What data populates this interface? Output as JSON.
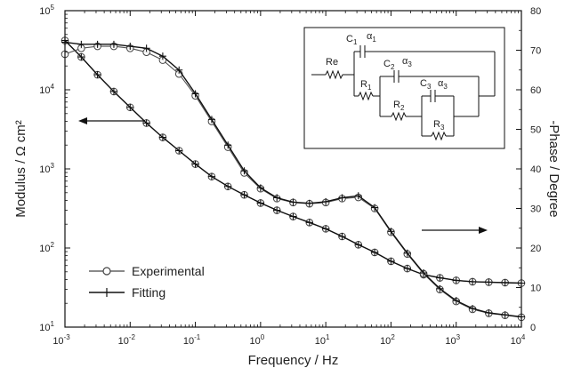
{
  "chart_data": {
    "type": "line",
    "title": "",
    "xlabel": "Frequency / Hz",
    "ylabel": "Modulus / Ω cm²",
    "ylabel_right": "-Phase / Degree",
    "xscale": "log",
    "yscale": "log",
    "xlim": [
      0.001,
      10000
    ],
    "ylim": [
      10,
      100000
    ],
    "ylim_right": [
      0,
      80
    ],
    "x_ticks": [
      {
        "base": "10",
        "exp": "-3"
      },
      {
        "base": "10",
        "exp": "-2"
      },
      {
        "base": "10",
        "exp": "-1"
      },
      {
        "base": "10",
        "exp": "0"
      },
      {
        "base": "10",
        "exp": "1"
      },
      {
        "base": "10",
        "exp": "2"
      },
      {
        "base": "10",
        "exp": "3"
      },
      {
        "base": "10",
        "exp": "4"
      }
    ],
    "y_ticks": [
      {
        "base": "10",
        "exp": "1"
      },
      {
        "base": "10",
        "exp": "2"
      },
      {
        "base": "10",
        "exp": "3"
      },
      {
        "base": "10",
        "exp": "4"
      },
      {
        "base": "10",
        "exp": "5"
      }
    ],
    "y2_ticks": [
      "0",
      "10",
      "20",
      "30",
      "40",
      "50",
      "60",
      "70",
      "80"
    ],
    "legend": {
      "placement": "bottom-left",
      "entries": [
        "Experimental",
        "Fitting"
      ]
    },
    "series": [
      {
        "name": "Experimental",
        "axis": "left",
        "marker": "circle",
        "x": [
          0.001,
          0.00178,
          0.00316,
          0.00562,
          0.01,
          0.0178,
          0.0316,
          0.0562,
          0.1,
          0.178,
          0.316,
          0.562,
          1,
          1.78,
          3.16,
          5.62,
          10,
          17.8,
          31.6,
          56.2,
          100,
          178,
          316,
          562,
          1000,
          1780,
          3160,
          5620,
          10000
        ],
        "y": [
          42000,
          26000,
          15500,
          9500,
          6000,
          3800,
          2500,
          1700,
          1150,
          800,
          600,
          470,
          370,
          300,
          250,
          210,
          175,
          140,
          110,
          88,
          68,
          55,
          46,
          42,
          39,
          37.5,
          37,
          36.5,
          36
        ]
      },
      {
        "name": "Fitting",
        "axis": "left",
        "marker": "plus",
        "x": [
          0.001,
          0.00178,
          0.00316,
          0.00562,
          0.01,
          0.0178,
          0.0316,
          0.0562,
          0.1,
          0.178,
          0.316,
          0.562,
          1,
          1.78,
          3.16,
          5.62,
          10,
          17.8,
          31.6,
          56.2,
          100,
          178,
          316,
          562,
          1000,
          1780,
          3160,
          5620,
          10000
        ],
        "y": [
          42000,
          26000,
          15500,
          9500,
          6000,
          3800,
          2500,
          1700,
          1150,
          800,
          600,
          470,
          370,
          300,
          250,
          210,
          175,
          140,
          110,
          88,
          68,
          55,
          46,
          42,
          39,
          37.5,
          37,
          36.5,
          36
        ]
      },
      {
        "name": "Experimental",
        "axis": "right",
        "marker": "circle",
        "x": [
          0.001,
          0.00178,
          0.00316,
          0.00562,
          0.01,
          0.0178,
          0.0316,
          0.0562,
          0.1,
          0.178,
          0.316,
          0.562,
          1,
          1.78,
          3.16,
          5.62,
          10,
          17.8,
          31.6,
          56.2,
          100,
          178,
          316,
          562,
          1000,
          1780,
          3160,
          5620,
          10000
        ],
        "y": [
          69,
          70.5,
          71,
          71,
          70.5,
          69.5,
          67.5,
          64,
          58.5,
          52,
          45.5,
          39,
          35,
          32.5,
          31.5,
          31.2,
          31.5,
          32.5,
          32.8,
          30,
          24,
          18.5,
          13.5,
          9.5,
          6.5,
          4.5,
          3.5,
          3,
          2.5
        ]
      },
      {
        "name": "Fitting",
        "axis": "right",
        "marker": "plus",
        "x": [
          0.001,
          0.00178,
          0.00316,
          0.00562,
          0.01,
          0.0178,
          0.0316,
          0.0562,
          0.1,
          0.178,
          0.316,
          0.562,
          1,
          1.78,
          3.16,
          5.62,
          10,
          17.8,
          31.6,
          56.2,
          100,
          178,
          316,
          562,
          1000,
          1780,
          3160,
          5620,
          10000
        ],
        "y": [
          72,
          71.5,
          71.5,
          71.5,
          71,
          70.5,
          68.5,
          65,
          59,
          52.5,
          46,
          39.5,
          35.2,
          32.7,
          31.6,
          31.3,
          31.7,
          32.7,
          33.2,
          30.2,
          24.2,
          18.7,
          13.7,
          9.7,
          6.7,
          4.7,
          3.6,
          3.1,
          2.6
        ]
      }
    ],
    "inset_circuit_labels": {
      "re": "Re",
      "c1": "C",
      "c1_sub": "1",
      "a1": "α",
      "a1_sub": "1",
      "r1": "R",
      "r1_sub": "1",
      "c2": "C",
      "c2_sub": "2",
      "a2": "α",
      "a2_sub": "3",
      "r2": "R",
      "r2_sub": "2",
      "c3": "C",
      "c3_sub": "3",
      "a3": "α",
      "a3_sub": "3",
      "r3": "R",
      "r3_sub": "3"
    }
  }
}
